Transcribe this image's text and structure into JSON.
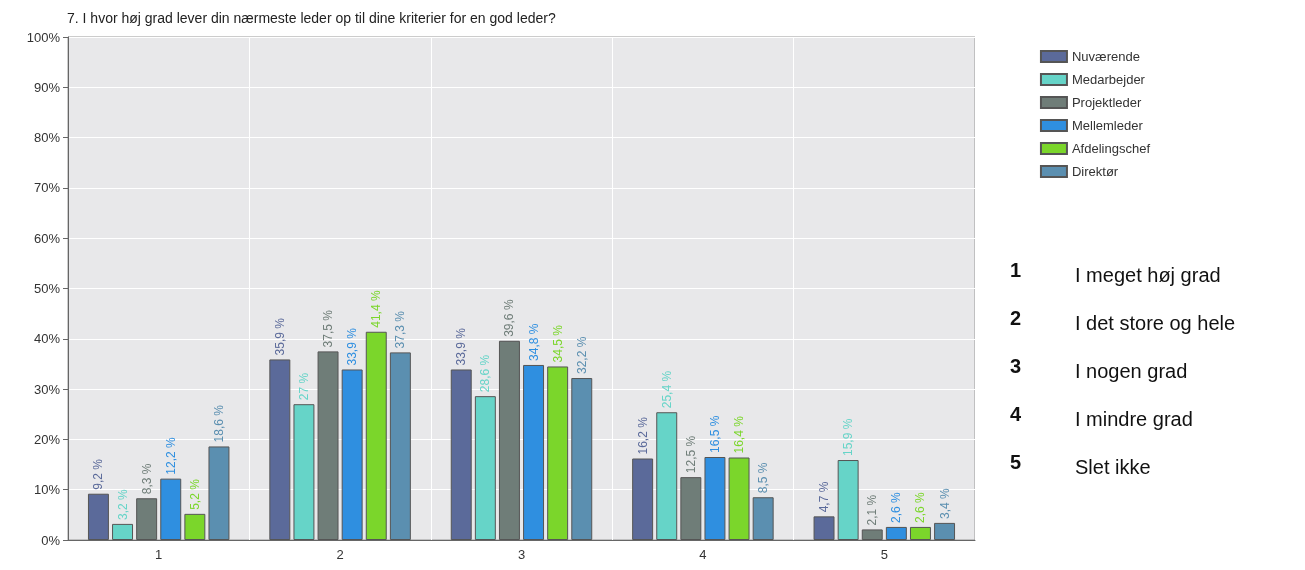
{
  "chart_data": {
    "type": "bar",
    "title": "7. I hvor høj grad lever din nærmeste leder op til dine kriterier for en god leder?",
    "categories": [
      "1",
      "2",
      "3",
      "4",
      "5"
    ],
    "series": [
      {
        "name": "Nuværende",
        "color": "#5b6a9a",
        "values": [
          9.2,
          35.9,
          33.9,
          16.2,
          4.7
        ],
        "value_labels": [
          "9,2 %",
          "35,9 %",
          "33,9 %",
          "16,2 %",
          "4,7 %"
        ]
      },
      {
        "name": "Medarbejder",
        "color": "#66d4c8",
        "values": [
          3.2,
          27,
          28.6,
          25.4,
          15.9
        ],
        "value_labels": [
          "3,2 %",
          "27 %",
          "28,6 %",
          "25,4 %",
          "15,9 %"
        ]
      },
      {
        "name": "Projektleder",
        "color": "#6f7d78",
        "values": [
          8.3,
          37.5,
          39.6,
          12.5,
          2.1
        ],
        "value_labels": [
          "8,3 %",
          "37,5 %",
          "39,6 %",
          "12,5 %",
          "2,1 %"
        ]
      },
      {
        "name": "Mellemleder",
        "color": "#2f8fe0",
        "values": [
          12.2,
          33.9,
          34.8,
          16.5,
          2.6
        ],
        "value_labels": [
          "12,2 %",
          "33,9 %",
          "34,8 %",
          "16,5 %",
          "2,6 %"
        ]
      },
      {
        "name": "Afdelingschef",
        "color": "#7bd62b",
        "values": [
          5.2,
          41.4,
          34.5,
          16.4,
          2.6
        ],
        "value_labels": [
          "5,2 %",
          "41,4 %",
          "34,5 %",
          "16,4 %",
          "2,6 %"
        ]
      },
      {
        "name": "Direktør",
        "color": "#5b8fb0",
        "values": [
          18.6,
          37.3,
          32.2,
          8.5,
          3.4
        ],
        "value_labels": [
          "18,6 %",
          "37,3 %",
          "32,2 %",
          "8,5 %",
          "3,4 %"
        ]
      }
    ],
    "ylim": [
      0,
      100
    ],
    "yticks": [
      {
        "value": 0,
        "label": "0%"
      },
      {
        "value": 10,
        "label": "10%"
      },
      {
        "value": 20,
        "label": "20%"
      },
      {
        "value": 30,
        "label": "30%"
      },
      {
        "value": 40,
        "label": "40%"
      },
      {
        "value": 50,
        "label": "50%"
      },
      {
        "value": 60,
        "label": "60%"
      },
      {
        "value": 70,
        "label": "70%"
      },
      {
        "value": 80,
        "label": "80%"
      },
      {
        "value": 90,
        "label": "90%"
      },
      {
        "value": 100,
        "label": "100%"
      }
    ],
    "grid": true,
    "legend": "top right",
    "annotations": [
      "1 I meget høj grad",
      "2 I det store og hele",
      "3 I nogen grad",
      "4 I mindre grad",
      "5 Slet ikke"
    ]
  }
}
